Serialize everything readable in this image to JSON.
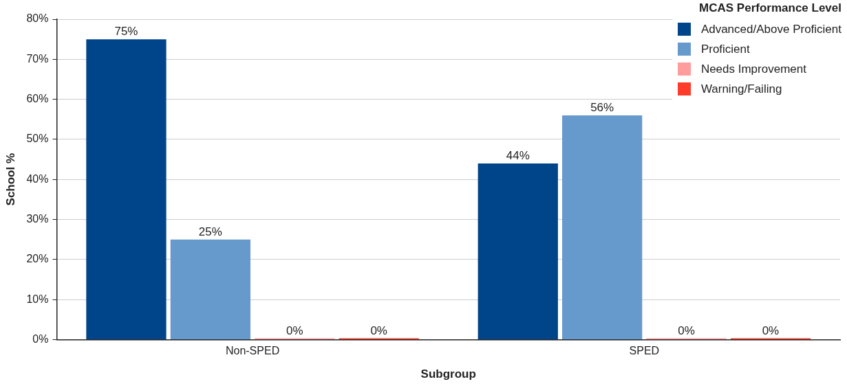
{
  "chart_data": {
    "type": "bar",
    "xlabel": "Subgroup",
    "ylabel": "School %",
    "legend_title": "MCAS Performance Level",
    "categories": [
      "Non-SPED",
      "SPED"
    ],
    "series": [
      {
        "name": "Advanced/Above Proficient",
        "color": "#00448a",
        "values": [
          75,
          44
        ],
        "value_labels": [
          "75%",
          "44%"
        ]
      },
      {
        "name": "Proficient",
        "color": "#6699cc",
        "values": [
          25,
          56
        ],
        "value_labels": [
          "25%",
          "56%"
        ]
      },
      {
        "name": "Needs Improvement",
        "color": "#ff9c9c",
        "values": [
          0,
          0
        ],
        "value_labels": [
          "0%",
          "0%"
        ]
      },
      {
        "name": "Warning/Failing",
        "color": "#ff3b2a",
        "values": [
          0,
          0
        ],
        "value_labels": [
          "0%",
          "0%"
        ]
      }
    ],
    "ylim": [
      0,
      80
    ],
    "yticks": [
      {
        "value": 0,
        "label": "0%"
      },
      {
        "value": 10,
        "label": "10%"
      },
      {
        "value": 20,
        "label": "20%"
      },
      {
        "value": 30,
        "label": "30%"
      },
      {
        "value": 40,
        "label": "40%"
      },
      {
        "value": 50,
        "label": "50%"
      },
      {
        "value": 60,
        "label": "60%"
      },
      {
        "value": 70,
        "label": "70%"
      },
      {
        "value": 80,
        "label": "80%"
      }
    ],
    "grid": "y",
    "legend": "top right"
  }
}
